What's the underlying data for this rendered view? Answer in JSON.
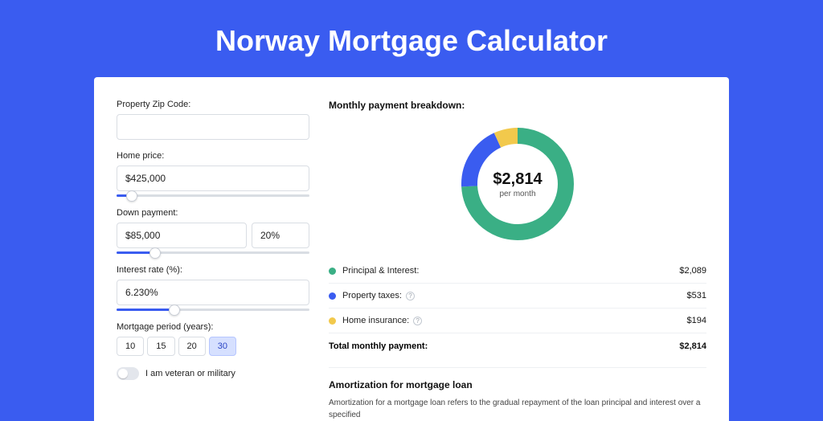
{
  "page_title": "Norway Mortgage Calculator",
  "background_color": "#3a5cf0",
  "card_background": "#ffffff",
  "form": {
    "zip": {
      "label": "Property Zip Code:",
      "value": ""
    },
    "home_price": {
      "label": "Home price:",
      "value": "$425,000",
      "slider_percent": 8
    },
    "down_payment": {
      "label": "Down payment:",
      "amount": "$85,000",
      "percent": "20%",
      "slider_percent": 20
    },
    "interest_rate": {
      "label": "Interest rate (%):",
      "value": "6.230%",
      "slider_percent": 30
    },
    "period": {
      "label": "Mortgage period (years):",
      "options": [
        "10",
        "15",
        "20",
        "30"
      ],
      "selected": "30"
    },
    "veteran": {
      "label": "I am veteran or military",
      "on": false
    }
  },
  "breakdown": {
    "title": "Monthly payment breakdown:",
    "center_amount": "$2,814",
    "center_sub": "per month",
    "donut": {
      "radius": 60,
      "stroke_width": 20,
      "slices": [
        {
          "color": "#3aaf85",
          "percent": 74.2
        },
        {
          "color": "#3a5cf0",
          "percent": 18.9
        },
        {
          "color": "#f2c94c",
          "percent": 6.9
        }
      ]
    },
    "rows": [
      {
        "dot": "#3aaf85",
        "label": "Principal & Interest:",
        "info": false,
        "value": "$2,089"
      },
      {
        "dot": "#3a5cf0",
        "label": "Property taxes:",
        "info": true,
        "value": "$531"
      },
      {
        "dot": "#f2c94c",
        "label": "Home insurance:",
        "info": true,
        "value": "$194"
      }
    ],
    "total_label": "Total monthly payment:",
    "total_value": "$2,814"
  },
  "amortization": {
    "title": "Amortization for mortgage loan",
    "text": "Amortization for a mortgage loan refers to the gradual repayment of the loan principal and interest over a specified"
  }
}
